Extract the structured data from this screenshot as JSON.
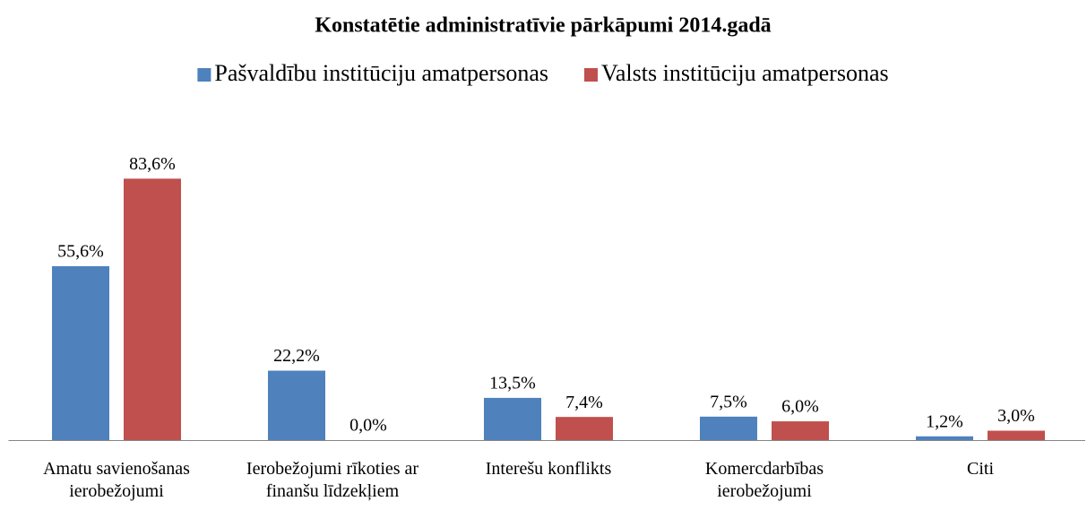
{
  "chart_data": {
    "type": "bar",
    "title": "Konstatētie administratīvie pārkāpumi 2014.gadā",
    "categories": [
      "Amatu savienošanas ierobežojumi",
      "Ierobežojumi rīkoties ar finanšu līdzekļiem",
      "Interešu konflikts",
      "Komercdarbības ierobežojumi",
      "Citi"
    ],
    "series": [
      {
        "name": "Pašvaldību institūciju amatpersonas",
        "color": "#4f81bd",
        "values": [
          55.6,
          22.2,
          13.5,
          7.5,
          1.2
        ],
        "value_labels": [
          "55,6%",
          "22,2%",
          "13,5%",
          "7,5%",
          "1,2%"
        ]
      },
      {
        "name": "Valsts institūciju amatpersonas",
        "color": "#c0504d",
        "values": [
          83.6,
          0.0,
          7.4,
          6.0,
          3.0
        ],
        "value_labels": [
          "83,6%",
          "0,0%",
          "7,4%",
          "6,0%",
          "3,0%"
        ]
      }
    ],
    "ylim": [
      0,
      90
    ],
    "legend": "top"
  }
}
